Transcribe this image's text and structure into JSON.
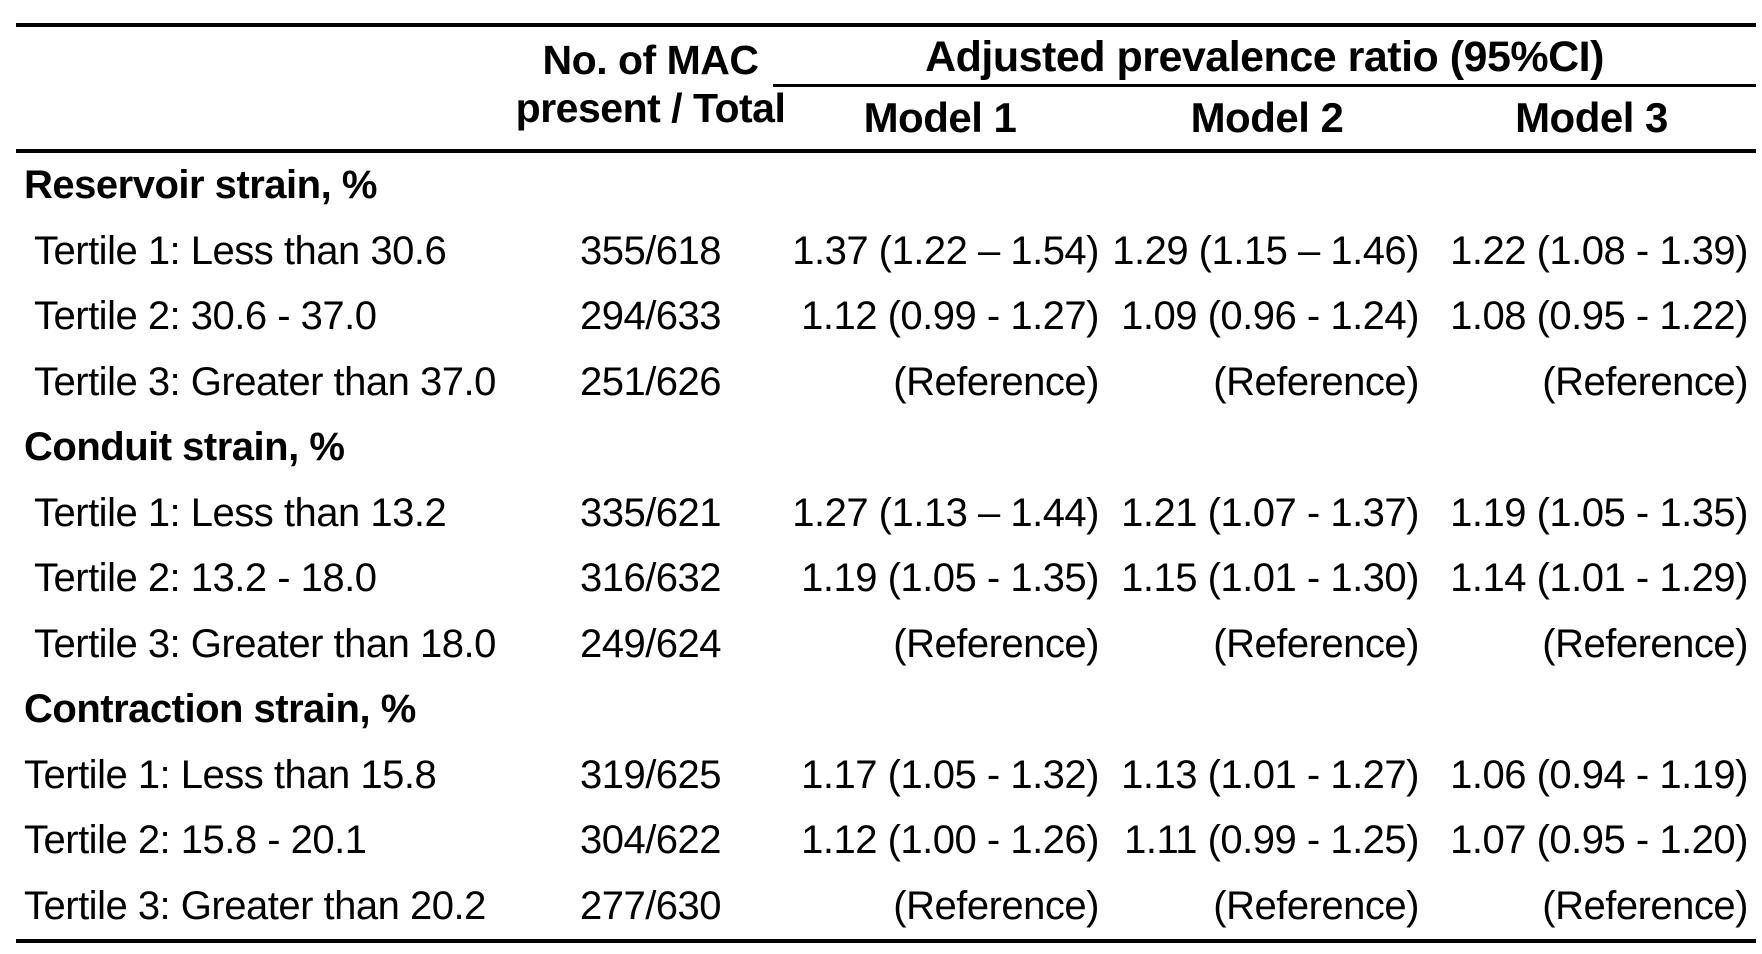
{
  "header": {
    "mac_line1": "No. of MAC",
    "mac_line2": "present / Total",
    "group_title": "Adjusted prevalence ratio (95%CI)",
    "models": [
      "Model 1",
      "Model 2",
      "Model 3"
    ]
  },
  "sections": [
    {
      "label": "Reservoir strain, %",
      "rows": [
        {
          "label": "Tertile 1: Less than 30.6",
          "mac": "355/618",
          "m1": "1.37 (1.22 – 1.54)",
          "m2": "1.29 (1.15 – 1.46)",
          "m3": "1.22 (1.08 - 1.39)"
        },
        {
          "label": "Tertile 2: 30.6 - 37.0",
          "mac": "294/633",
          "m1": "1.12 (0.99 - 1.27)",
          "m2": "1.09 (0.96 - 1.24)",
          "m3": "1.08 (0.95 - 1.22)"
        },
        {
          "label": "Tertile 3: Greater than 37.0",
          "mac": "251/626",
          "m1": "(Reference)",
          "m2": "(Reference)",
          "m3": "(Reference)"
        }
      ]
    },
    {
      "label": "Conduit strain, %",
      "rows": [
        {
          "label": "Tertile 1: Less than 13.2",
          "mac": "335/621",
          "m1": "1.27 (1.13 – 1.44)",
          "m2": "1.21 (1.07 - 1.37)",
          "m3": "1.19 (1.05 - 1.35)"
        },
        {
          "label": "Tertile 2: 13.2 - 18.0",
          "mac": "316/632",
          "m1": "1.19 (1.05 - 1.35)",
          "m2": "1.15 (1.01 - 1.30)",
          "m3": "1.14 (1.01 - 1.29)"
        },
        {
          "label": "Tertile 3: Greater than 18.0",
          "mac": "249/624",
          "m1": "(Reference)",
          "m2": "(Reference)",
          "m3": "(Reference)"
        }
      ]
    },
    {
      "label": "Contraction strain, %",
      "rows": [
        {
          "label": "Tertile 1: Less than 15.8",
          "mac": "319/625",
          "m1": "1.17 (1.05 - 1.32)",
          "m2": "1.13 (1.01 - 1.27)",
          "m3": "1.06 (0.94 - 1.19)"
        },
        {
          "label": "Tertile 2: 15.8 - 20.1",
          "mac": "304/622",
          "m1": "1.12 (1.00 - 1.26)",
          "m2": "1.11 (0.99 - 1.25)",
          "m3": "1.07 (0.95 - 1.20)"
        },
        {
          "label": "Tertile 3: Greater than 20.2",
          "mac": "277/630",
          "m1": "(Reference)",
          "m2": "(Reference)",
          "m3": "(Reference)"
        }
      ]
    }
  ],
  "colors": {
    "text": "#000000",
    "background": "#ffffff",
    "rule": "#000000"
  }
}
